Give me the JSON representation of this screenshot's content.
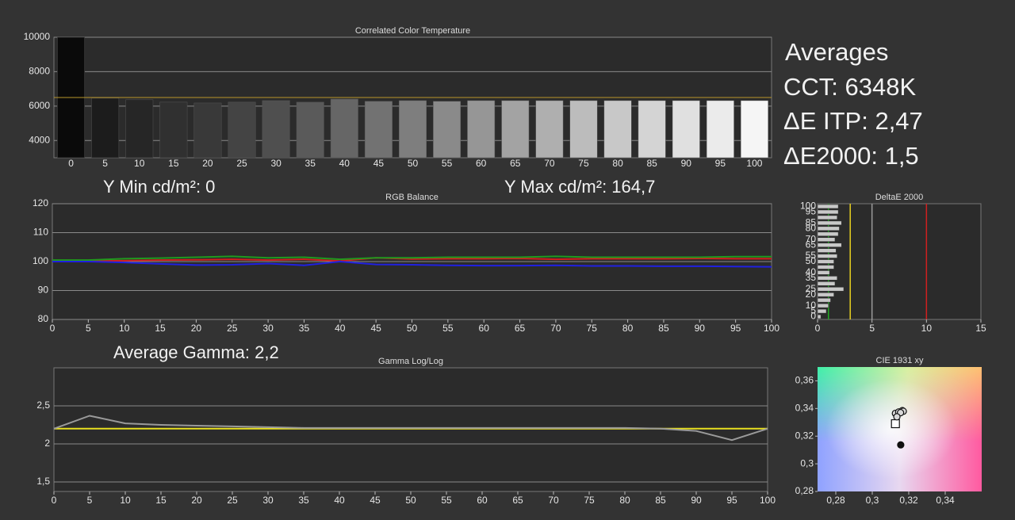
{
  "averages": {
    "title": "Averages",
    "lines": [
      "CCT: 6348K",
      "ΔE ITP: 2,47",
      "ΔE2000: 1,5"
    ]
  },
  "chart_data": [
    {
      "type": "bar",
      "title": "Correlated Color Temperature",
      "categories": [
        0,
        5,
        10,
        15,
        20,
        25,
        30,
        35,
        40,
        45,
        50,
        55,
        60,
        65,
        70,
        75,
        80,
        85,
        90,
        95,
        100
      ],
      "values": [
        10000,
        6460,
        6370,
        6230,
        6180,
        6230,
        6320,
        6230,
        6410,
        6280,
        6320,
        6280,
        6320,
        6320,
        6320,
        6320,
        6320,
        6320,
        6320,
        6320,
        6320
      ],
      "colors": [
        "#0a0a0a",
        "#1c1c1c",
        "#262626",
        "#303030",
        "#393939",
        "#444444",
        "#4f4f4f",
        "#5a5a5a",
        "#666666",
        "#727272",
        "#7e7e7e",
        "#8a8a8a",
        "#969696",
        "#a3a3a3",
        "#afafaf",
        "#bcbcbc",
        "#c8c8c8",
        "#d4d4d4",
        "#e0e0e0",
        "#ebebeb",
        "#f5f5f5"
      ],
      "ylim": [
        3000,
        10000
      ],
      "yticks": [
        4000,
        6000,
        8000,
        {
          "value": 10000,
          "label": "10000"
        }
      ],
      "grid": true,
      "references": [
        {
          "value": 6500,
          "color": "#b8962a"
        }
      ]
    },
    {
      "type": "line",
      "title": "RGB Balance",
      "annotations": [
        "Y Min cd/m²: 0",
        "Y Max cd/m²: 164,7"
      ],
      "x": [
        0,
        5,
        10,
        15,
        20,
        25,
        30,
        35,
        40,
        45,
        50,
        55,
        60,
        65,
        70,
        75,
        80,
        85,
        90,
        95,
        100
      ],
      "xlim": [
        0,
        100
      ],
      "xticks": [
        0,
        5,
        10,
        15,
        20,
        25,
        30,
        35,
        40,
        45,
        50,
        55,
        60,
        65,
        70,
        75,
        80,
        85,
        90,
        95,
        100
      ],
      "ylim": [
        80,
        120
      ],
      "yticks": [
        80,
        90,
        100,
        110,
        120
      ],
      "grid": true,
      "series": [
        {
          "color": "#d21f1f",
          "values": [
            100,
            100.2,
            100.3,
            100.5,
            100.6,
            100.8,
            100.5,
            100.8,
            100.2,
            101.3,
            100.9,
            101,
            101,
            101.1,
            100.8,
            101,
            101,
            101,
            101.1,
            101,
            101
          ]
        },
        {
          "color": "#1f9a1f",
          "values": [
            100.5,
            100.5,
            101,
            101.2,
            101.5,
            101.8,
            101.3,
            101.5,
            100.8,
            101.3,
            101.3,
            101.5,
            101.5,
            101.5,
            101.8,
            101.5,
            101.5,
            101.5,
            101.5,
            101.7,
            101.7
          ]
        },
        {
          "color": "#2020e0",
          "values": [
            100,
            100,
            99.7,
            99.2,
            98.8,
            98.9,
            99.3,
            98.7,
            100,
            99,
            98.9,
            98.7,
            98.6,
            98.6,
            98.7,
            98.5,
            98.5,
            98.4,
            98.4,
            98.3,
            98.2
          ]
        }
      ]
    },
    {
      "type": "line",
      "title": "Gamma Log/Log",
      "annotations": [
        "Average Gamma: 2,2"
      ],
      "x": [
        0,
        5,
        10,
        15,
        20,
        25,
        30,
        35,
        40,
        45,
        50,
        55,
        60,
        65,
        70,
        75,
        80,
        85,
        90,
        95,
        100
      ],
      "xlim": [
        0,
        100
      ],
      "xticks": [
        0,
        5,
        10,
        15,
        20,
        25,
        30,
        35,
        40,
        45,
        50,
        55,
        60,
        65,
        70,
        75,
        80,
        85,
        90,
        95,
        100
      ],
      "ylim": [
        1.375,
        3
      ],
      "yticks": [
        {
          "value": 1.5,
          "label": "1,5"
        },
        2,
        {
          "value": 2.5,
          "label": "2,5"
        }
      ],
      "grid": true,
      "references": [
        {
          "value": 2.2,
          "color": "#e8e020"
        }
      ],
      "series": [
        {
          "color": "#9a9a9a",
          "values": [
            2.2,
            2.37,
            2.27,
            2.25,
            2.24,
            2.23,
            2.22,
            2.21,
            2.21,
            2.21,
            2.21,
            2.21,
            2.21,
            2.21,
            2.21,
            2.21,
            2.21,
            2.2,
            2.17,
            2.05,
            2.2
          ]
        }
      ]
    },
    {
      "type": "barh",
      "title": "DeltaE 2000",
      "categories": [
        0,
        5,
        10,
        null,
        20,
        25,
        null,
        35,
        40,
        null,
        50,
        55,
        null,
        65,
        70,
        null,
        80,
        85,
        null,
        95,
        100
      ],
      "values": [
        0.3,
        0.8,
        1,
        1.2,
        1.5,
        2.4,
        1.6,
        1.8,
        1.1,
        1.5,
        1.5,
        1.8,
        1.7,
        2.2,
        1.6,
        1.9,
        2,
        2.2,
        1.8,
        1.9,
        1.9
      ],
      "color": "#c8c8c8",
      "xlim": [
        0,
        15
      ],
      "xticks": [
        0,
        5,
        10,
        15
      ],
      "references": [
        {
          "value": 1,
          "color": "#22aa22"
        },
        {
          "value": 3,
          "color": "#e8d020"
        },
        {
          "value": 5,
          "color": "#9a9a9a"
        },
        {
          "value": 10,
          "color": "#d02020"
        }
      ]
    },
    {
      "type": "scatter",
      "title": "CIE 1931 xy",
      "xlim": [
        0.27,
        0.36
      ],
      "xticks": [
        {
          "value": 0.28,
          "label": "0,28"
        },
        {
          "value": 0.3,
          "label": "0,3"
        },
        {
          "value": 0.32,
          "label": "0,32"
        },
        {
          "value": 0.34,
          "label": "0,34"
        }
      ],
      "ylim": [
        0.28,
        0.37
      ],
      "yticks": [
        {
          "value": 0.28,
          "label": "0,28"
        },
        {
          "value": 0.3,
          "label": "0,3"
        },
        {
          "value": 0.32,
          "label": "0,32"
        },
        {
          "value": 0.34,
          "label": "0,34"
        },
        {
          "value": 0.36,
          "label": "0,36"
        }
      ],
      "series": [
        {
          "color": "#ffffff",
          "marker": "square",
          "x": [
            0.3127
          ],
          "y": [
            0.329
          ]
        },
        {
          "color": "#d8d8d8",
          "marker": "circle",
          "x": [
            0.3127,
            0.3145,
            0.3165,
            0.317,
            0.3155,
            0.3135
          ],
          "y": [
            0.3365,
            0.3375,
            0.3385,
            0.338,
            0.337,
            0.334
          ]
        },
        {
          "color": "#111111",
          "marker": "circle",
          "x": [
            0.3156
          ],
          "y": [
            0.3137
          ]
        }
      ]
    }
  ]
}
